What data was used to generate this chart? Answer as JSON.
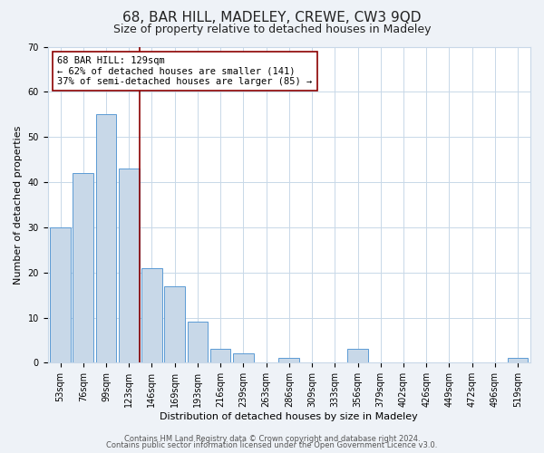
{
  "title": "68, BAR HILL, MADELEY, CREWE, CW3 9QD",
  "subtitle": "Size of property relative to detached houses in Madeley",
  "xlabel": "Distribution of detached houses by size in Madeley",
  "ylabel": "Number of detached properties",
  "categories": [
    "53sqm",
    "76sqm",
    "99sqm",
    "123sqm",
    "146sqm",
    "169sqm",
    "193sqm",
    "216sqm",
    "239sqm",
    "263sqm",
    "286sqm",
    "309sqm",
    "333sqm",
    "356sqm",
    "379sqm",
    "402sqm",
    "426sqm",
    "449sqm",
    "472sqm",
    "496sqm",
    "519sqm"
  ],
  "values": [
    30,
    42,
    55,
    43,
    21,
    17,
    9,
    3,
    2,
    0,
    1,
    0,
    0,
    3,
    0,
    0,
    0,
    0,
    0,
    0,
    1
  ],
  "bar_color": "#c8d8e8",
  "bar_edge_color": "#5b9bd5",
  "vline_x_index": 3,
  "vline_color": "#8b0000",
  "annotation_line1": "68 BAR HILL: 129sqm",
  "annotation_line2": "← 62% of detached houses are smaller (141)",
  "annotation_line3": "37% of semi-detached houses are larger (85) →",
  "annotation_box_color": "white",
  "annotation_box_edge": "#8b0000",
  "ylim": [
    0,
    70
  ],
  "yticks": [
    0,
    10,
    20,
    30,
    40,
    50,
    60,
    70
  ],
  "footer_line1": "Contains HM Land Registry data © Crown copyright and database right 2024.",
  "footer_line2": "Contains public sector information licensed under the Open Government Licence v3.0.",
  "background_color": "#eef2f7",
  "plot_background": "white",
  "grid_color": "#c8d8e8",
  "title_fontsize": 11,
  "subtitle_fontsize": 9,
  "axis_label_fontsize": 8,
  "tick_fontsize": 7,
  "annotation_fontsize": 7.5,
  "footer_fontsize": 6
}
